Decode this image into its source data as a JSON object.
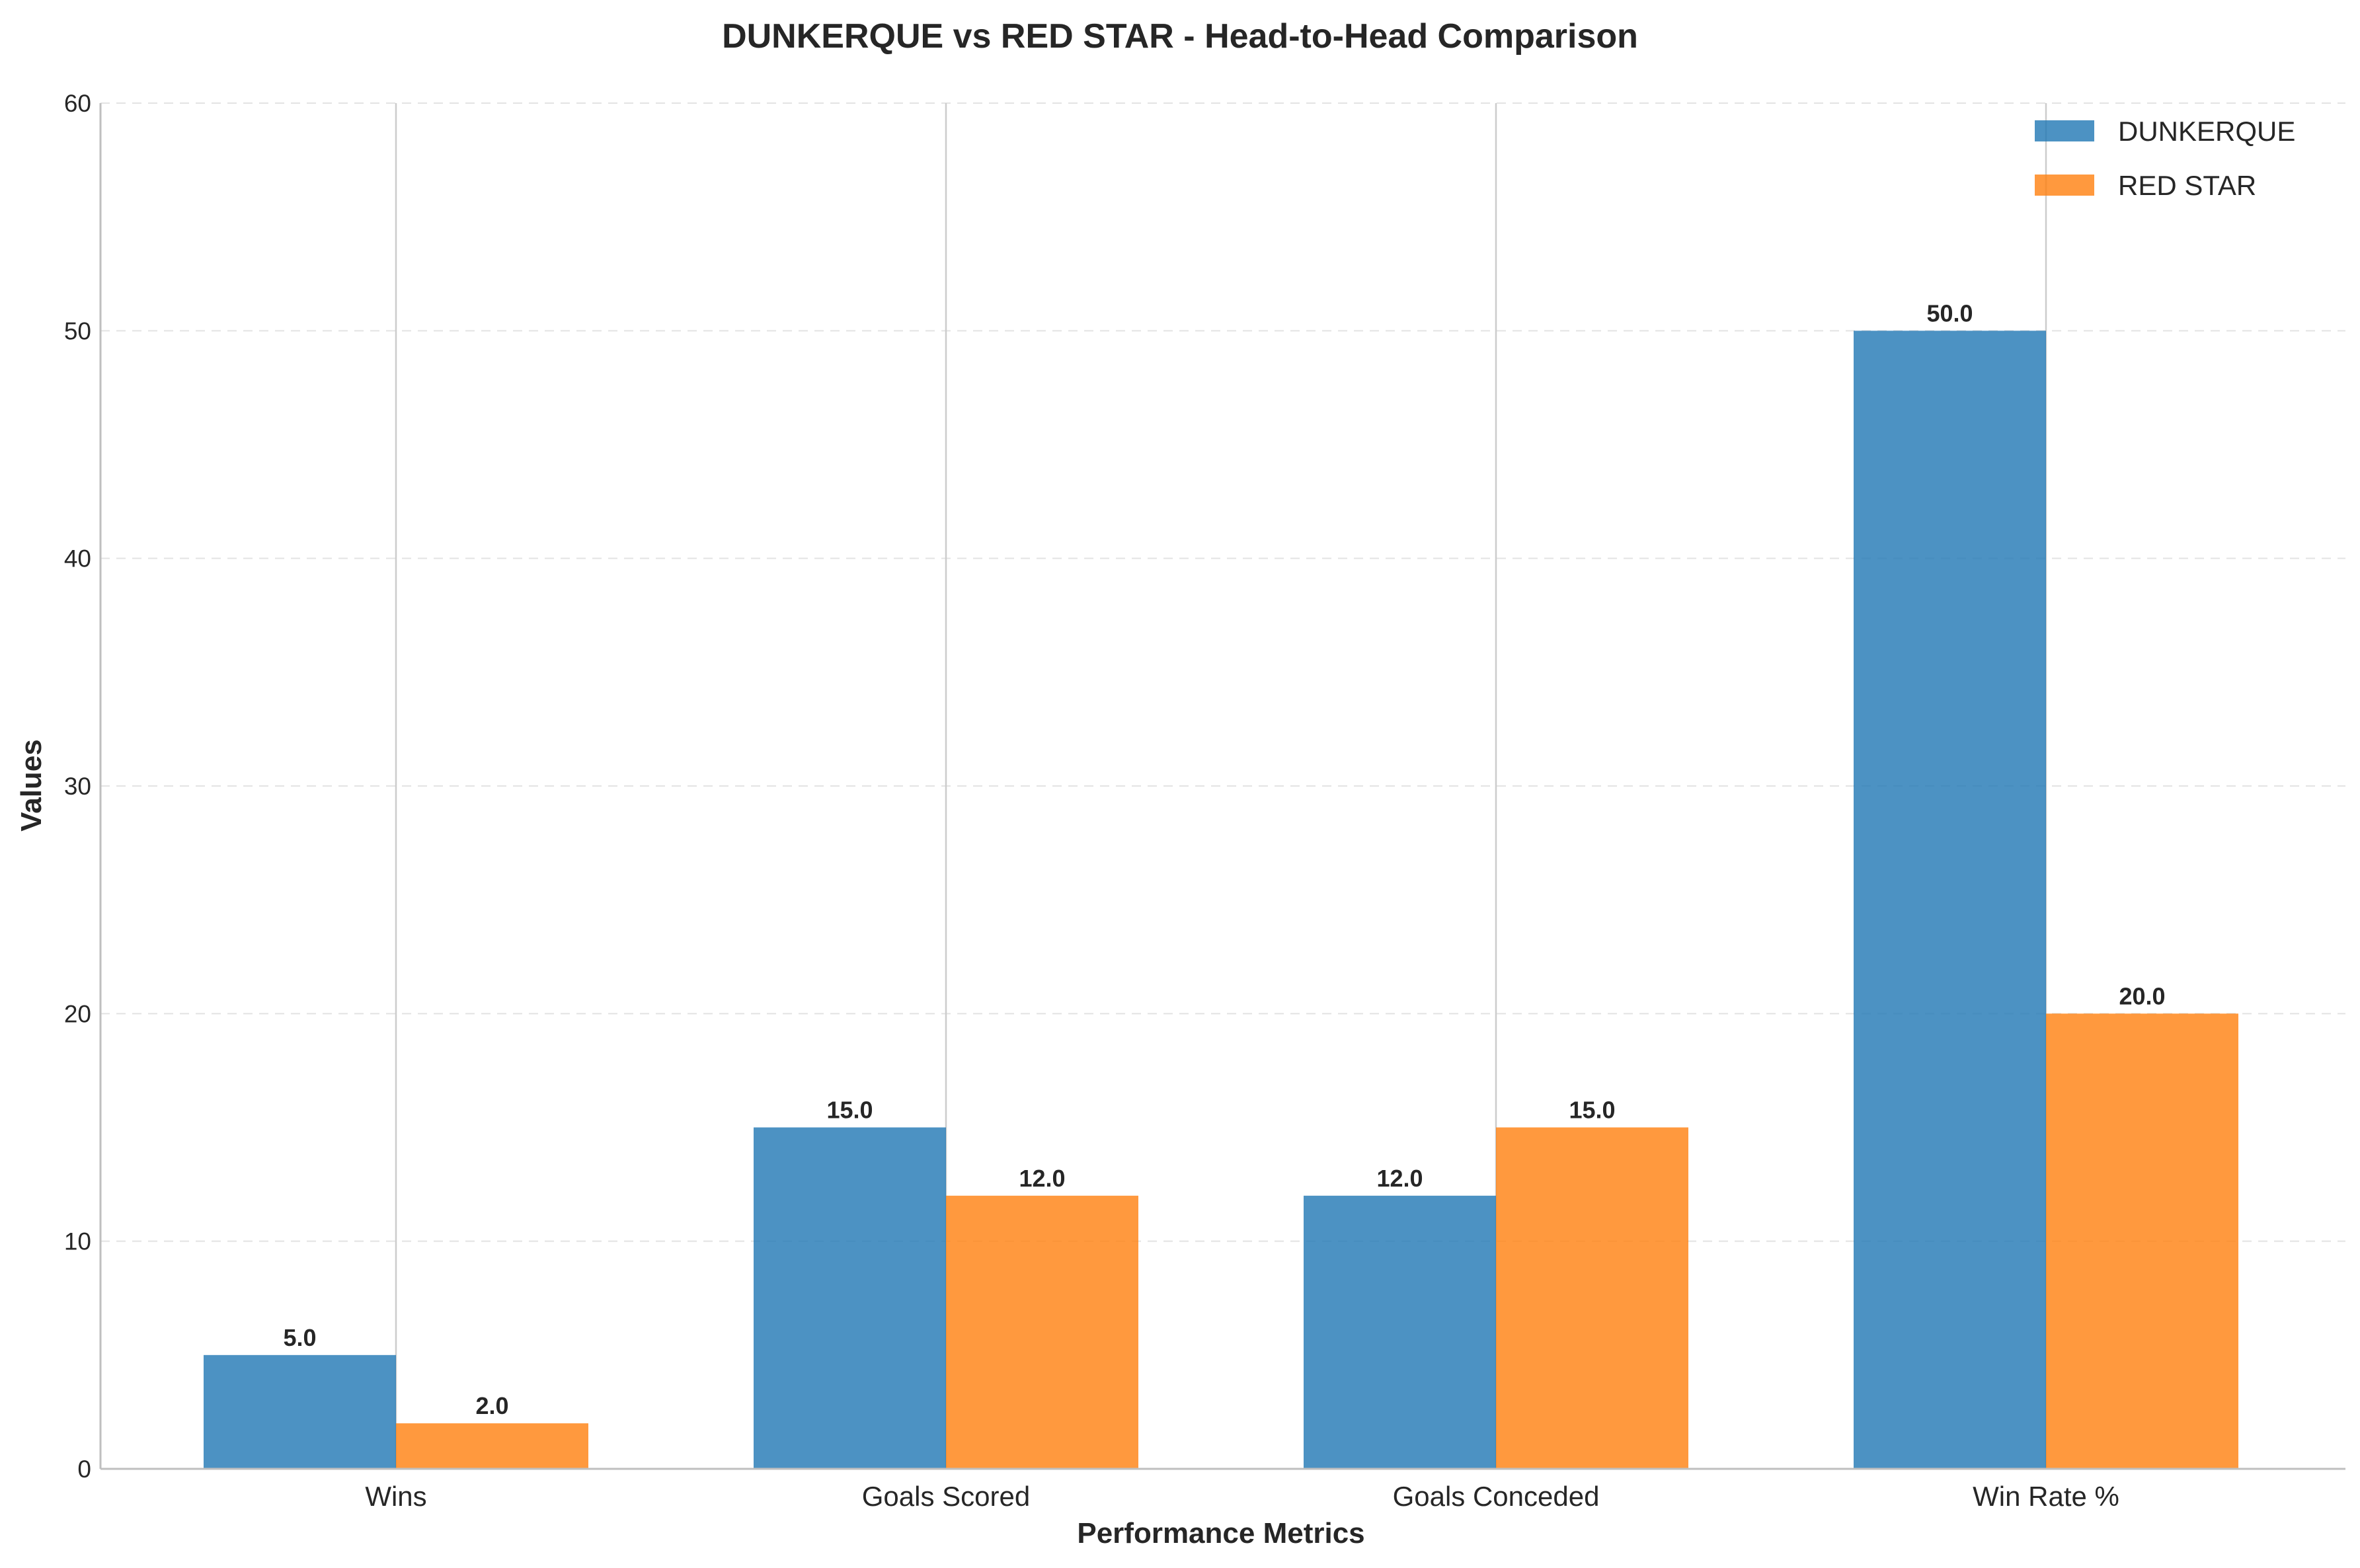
{
  "chart_data": {
    "type": "bar",
    "title": "DUNKERQUE vs RED STAR - Head-to-Head Comparison",
    "xlabel": "Performance Metrics",
    "ylabel": "Values",
    "categories": [
      "Wins",
      "Goals Scored",
      "Goals Conceded",
      "Win Rate %"
    ],
    "series": [
      {
        "name": "DUNKERQUE",
        "color": "#1f77b4",
        "values": [
          5.0,
          15.0,
          12.0,
          50.0
        ]
      },
      {
        "name": "RED STAR",
        "color": "#ff7f0e",
        "values": [
          2.0,
          12.0,
          15.0,
          20.0
        ]
      }
    ],
    "ylim": [
      0,
      60
    ],
    "yticks": [
      0,
      10,
      20,
      30,
      40,
      50,
      60
    ],
    "grid": {
      "y": true,
      "y_style": "dashed",
      "x": true
    },
    "legend_placement": "top-right",
    "value_label_format": "one-decimal"
  }
}
